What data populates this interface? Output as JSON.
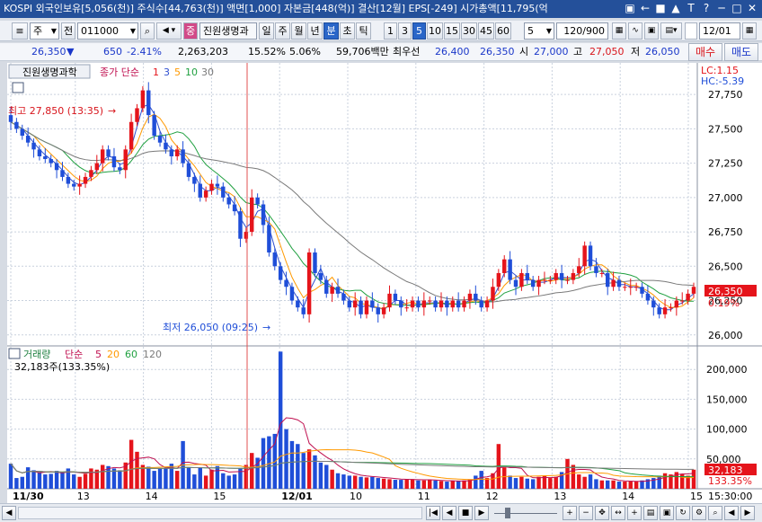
{
  "title": {
    "text": "KOSPI 외국인보유[5,056(천)] 주식수[44,763(천)] 액면[1,000] 자본금[448(억)] 결산[12월] EPS[-249] 시가총액[11,795(억"
  },
  "title_icons": [
    "▣",
    "←",
    "■",
    "▲",
    "T",
    "?",
    "─",
    "□",
    "✕"
  ],
  "toolbar": {
    "menu_label": "≡",
    "market_label": "주",
    "prev_label": "전",
    "code_value": "011000",
    "stock_name": "진원생명과",
    "pin_label": "중",
    "period_buttons": [
      {
        "label": "일",
        "selected": false
      },
      {
        "label": "주",
        "selected": false
      },
      {
        "label": "월",
        "selected": false
      },
      {
        "label": "년",
        "selected": false
      },
      {
        "label": "분",
        "selected": true
      },
      {
        "label": "초",
        "selected": false
      },
      {
        "label": "틱",
        "selected": false
      }
    ],
    "interval_buttons": [
      {
        "label": "1",
        "selected": false
      },
      {
        "label": "3",
        "selected": false
      },
      {
        "label": "5",
        "selected": true
      },
      {
        "label": "10",
        "selected": false
      },
      {
        "label": "15",
        "selected": false
      },
      {
        "label": "30",
        "selected": false
      },
      {
        "label": "45",
        "selected": false
      },
      {
        "label": "60",
        "selected": false
      }
    ],
    "interval_value": "5",
    "count_value": "120/900",
    "date_value": "12/01"
  },
  "quote": {
    "price": "26,350",
    "arrow": "▼",
    "change": "650",
    "change_pct": "-2.41%",
    "volume": "2,263,203",
    "turnover_pct": "15.52%",
    "ratio_pct": "5.06%",
    "amount": "59,706백만",
    "best_label": "최우선",
    "best_ask": "26,400",
    "best_bid": "26,350",
    "open_label": "시",
    "open": "27,000",
    "high_label": "고",
    "high": "27,050",
    "low_label": "저",
    "low": "26,050",
    "buy_label": "매수",
    "sell_label": "매도"
  },
  "chart_panel": {
    "stock_tab": "진원생명과학",
    "ma_label": "종가 단순",
    "ma_periods": [
      "1",
      "3",
      "5",
      "10",
      "30"
    ],
    "lc_label": "LC:1.15",
    "hc_label": "HC:-5.39",
    "high_marker": "최고 27,850 (13:35)",
    "low_marker": "최저 26,050 (09:25)",
    "last_price_tag": "26,350",
    "last_pct_tag": "0.19%",
    "vol_label": "거래량",
    "vol_ma_label": "단순",
    "vol_ma_periods": [
      "5",
      "20",
      "60",
      "120"
    ],
    "vol_last_label": "32,183주(133.35%)",
    "vol_tag": "32,183",
    "vol_pct_tag": "133.35%",
    "time_label": "15:30:00"
  },
  "colors": {
    "up": "#e5141b",
    "down": "#1f4ed8",
    "ma1": "#e5141b",
    "ma3": "#3050d0",
    "ma5": "#ff9900",
    "ma10": "#20a040",
    "ma30": "#7a7a7a"
  },
  "chart_data": [
    {
      "type": "candlestick",
      "title": "진원생명과학",
      "y_ticks": [
        26000,
        26250,
        26500,
        26750,
        27000,
        27250,
        27500,
        27750
      ],
      "ylim": [
        25920,
        27980
      ],
      "x_ticks": [
        "11/30",
        "13",
        "14",
        "15",
        "12/01",
        "10",
        "11",
        "12",
        "13",
        "14",
        "15"
      ],
      "high": 27850,
      "low": 26050,
      "last": 26350,
      "closes": [
        27550,
        27500,
        27450,
        27400,
        27350,
        27300,
        27280,
        27250,
        27200,
        27150,
        27100,
        27080,
        27100,
        27150,
        27200,
        27250,
        27350,
        27300,
        27220,
        27200,
        27350,
        27550,
        27650,
        27780,
        27600,
        27450,
        27400,
        27350,
        27300,
        27350,
        27250,
        27150,
        27100,
        27000,
        27050,
        27100,
        27080,
        27000,
        26950,
        26900,
        26700,
        26750,
        27000,
        26950,
        26800,
        26600,
        26500,
        26400,
        26350,
        26250,
        26200,
        26150,
        26600,
        26450,
        26400,
        26300,
        26350,
        26300,
        26250,
        26200,
        26250,
        26150,
        26250,
        26200,
        26150,
        26200,
        26300,
        26250,
        26200,
        26200,
        26250,
        26200,
        26250,
        26250,
        26200,
        26250,
        26200,
        26250,
        26200,
        26250,
        26300,
        26250,
        26200,
        26250,
        26350,
        26450,
        26550,
        26400,
        26350,
        26450,
        26400,
        26350,
        26400,
        26400,
        26400,
        26450,
        26400,
        26400,
        26450,
        26500,
        26650,
        26500,
        26450,
        26450,
        26350,
        26400,
        26350,
        26350,
        26350,
        26350,
        26300,
        26250,
        26200,
        26150,
        26200,
        26200,
        26250,
        26250,
        26300,
        26350
      ]
    },
    {
      "type": "bar",
      "title": "거래량",
      "y_ticks": [
        50000,
        100000,
        150000,
        200000
      ],
      "ylim": [
        0,
        235000
      ],
      "values": [
        42000,
        18000,
        20000,
        36000,
        31000,
        28000,
        24000,
        25000,
        30000,
        27000,
        34000,
        24000,
        20000,
        25000,
        34000,
        32000,
        40000,
        38000,
        34000,
        31000,
        44000,
        82000,
        62000,
        40000,
        37000,
        30000,
        34000,
        35000,
        42000,
        30000,
        80000,
        36000,
        24000,
        36000,
        22000,
        32000,
        38000,
        26000,
        22000,
        24000,
        34000,
        40000,
        60000,
        52000,
        85000,
        88000,
        92000,
        230000,
        100000,
        80000,
        75000,
        60000,
        66000,
        56000,
        44000,
        40000,
        32000,
        26000,
        24000,
        22000,
        22000,
        20000,
        19000,
        20000,
        18000,
        17000,
        16000,
        15000,
        15000,
        16000,
        16000,
        14000,
        14000,
        15000,
        14000,
        13000,
        12000,
        13000,
        13000,
        14000,
        16000,
        22000,
        30000,
        18000,
        26000,
        75000,
        36000,
        22000,
        18000,
        20000,
        17000,
        16000,
        20000,
        22000,
        18000,
        20000,
        28000,
        50000,
        40000,
        24000,
        20000,
        24000,
        16000,
        14000,
        14000,
        14000,
        12000,
        12000,
        12000,
        12000,
        14000,
        16000,
        18000,
        22000,
        26000,
        24000,
        28000,
        24000,
        22000,
        32000
      ]
    }
  ]
}
